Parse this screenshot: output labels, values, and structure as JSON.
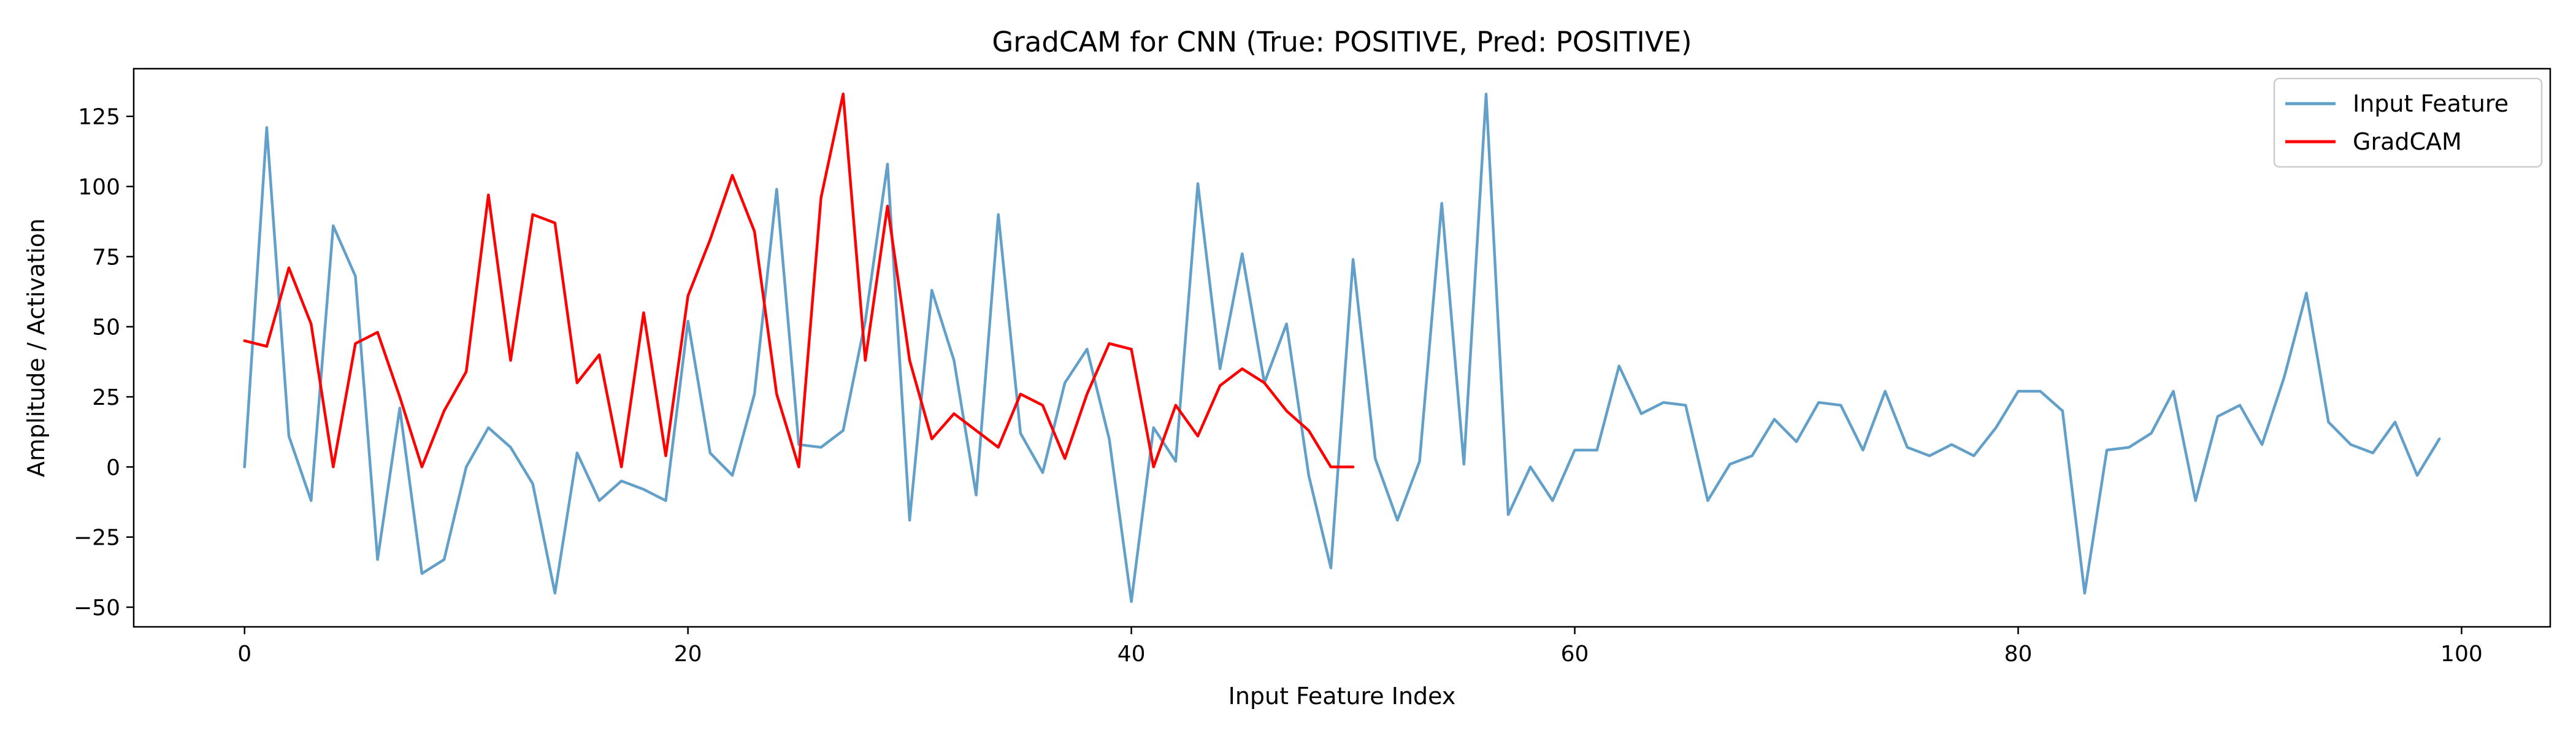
{
  "chart_data": {
    "type": "line",
    "title": "GradCAM for CNN (True: POSITIVE, Pred: POSITIVE)",
    "xlabel": "Input Feature Index",
    "ylabel": "Amplitude / Activation",
    "xlim": [
      -5,
      104
    ],
    "ylim": [
      -57,
      142
    ],
    "x_ticks": [
      0,
      20,
      40,
      60,
      80,
      100
    ],
    "y_ticks": [
      -50,
      -25,
      0,
      25,
      50,
      75,
      100,
      125
    ],
    "legend_position": "upper right",
    "grid": false,
    "series": [
      {
        "name": "Input Feature",
        "color": "#1f77b4",
        "alpha": 0.7,
        "x": [
          0,
          1,
          2,
          3,
          4,
          5,
          6,
          7,
          8,
          9,
          10,
          11,
          12,
          13,
          14,
          15,
          16,
          17,
          18,
          19,
          20,
          21,
          22,
          23,
          24,
          25,
          26,
          27,
          28,
          29,
          30,
          31,
          32,
          33,
          34,
          35,
          36,
          37,
          38,
          39,
          40,
          41,
          42,
          43,
          44,
          45,
          46,
          47,
          48,
          49,
          50,
          51,
          52,
          53,
          54,
          55,
          56,
          57,
          58,
          59,
          60,
          61,
          62,
          63,
          64,
          65,
          66,
          67,
          68,
          69,
          70,
          71,
          72,
          73,
          74,
          75,
          76,
          77,
          78,
          79,
          80,
          81,
          82,
          83,
          84,
          85,
          86,
          87,
          88,
          89,
          90,
          91,
          92,
          93,
          94,
          95,
          96,
          97,
          98,
          99
        ],
        "values": [
          0,
          121,
          11,
          -12,
          86,
          68,
          -33,
          21,
          -38,
          -33,
          0,
          14,
          7,
          -6,
          -45,
          5,
          -12,
          -5,
          -8,
          -12,
          52,
          5,
          -3,
          26,
          99,
          8,
          7,
          13,
          52,
          108,
          -19,
          63,
          38,
          -10,
          90,
          12,
          -2,
          30,
          42,
          10,
          -48,
          14,
          2,
          101,
          35,
          76,
          30,
          51,
          -3,
          -36,
          74,
          3,
          -19,
          2,
          94,
          1,
          133,
          -17,
          0,
          -12,
          6,
          6,
          36,
          19,
          23,
          22,
          -12,
          1,
          4,
          17,
          9,
          23,
          22,
          6,
          27,
          7,
          4,
          8,
          4,
          14,
          27,
          27,
          20,
          -45,
          6,
          7,
          12,
          27,
          -12,
          18,
          22,
          8,
          32,
          62,
          16,
          8,
          5,
          16,
          -3,
          10
        ]
      },
      {
        "name": "GradCAM",
        "color": "#ff0000",
        "alpha": 1,
        "x": [
          0,
          1,
          2,
          3,
          4,
          5,
          6,
          7,
          8,
          9,
          10,
          11,
          12,
          13,
          14,
          15,
          16,
          17,
          18,
          19,
          20,
          21,
          22,
          23,
          24,
          25,
          26,
          27,
          28,
          29,
          30,
          31,
          32,
          33,
          34,
          35,
          36,
          37,
          38,
          39,
          40,
          41,
          42,
          43,
          44,
          45,
          46,
          47,
          48,
          49,
          50
        ],
        "values": [
          45,
          43,
          71,
          51,
          0,
          44,
          48,
          25,
          0,
          20,
          34,
          97,
          38,
          90,
          87,
          30,
          40,
          0,
          55,
          4,
          61,
          81,
          104,
          84,
          26,
          0,
          96,
          133,
          38,
          93,
          38,
          10,
          19,
          13,
          7,
          26,
          22,
          3,
          26,
          44,
          42,
          0,
          22,
          11,
          29,
          35,
          30,
          20,
          13,
          0,
          0
        ]
      }
    ]
  }
}
